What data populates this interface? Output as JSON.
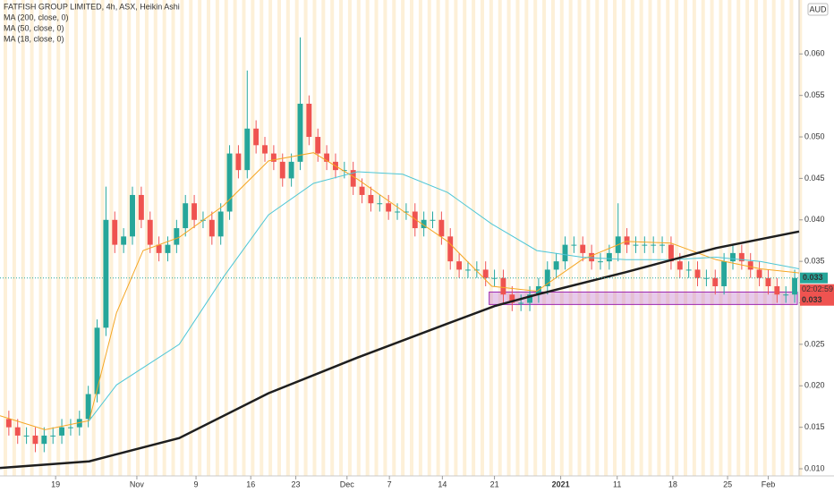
{
  "chart_data": {
    "type": "candlestick",
    "title": "FATFISH GROUP LIMITED, 4h, ASX, Heikin Ashi",
    "currency": "AUD",
    "x": [
      0,
      1,
      2,
      3,
      4,
      5,
      6,
      7,
      8,
      9,
      10,
      11,
      12,
      13,
      14,
      15,
      16,
      17,
      18,
      19,
      20,
      21,
      22,
      23,
      24,
      25,
      26,
      27,
      28,
      29,
      30,
      31,
      32,
      33,
      34,
      35,
      36,
      37,
      38,
      39,
      40,
      41,
      42,
      43,
      44,
      45,
      46,
      47,
      48,
      49,
      50,
      51,
      52,
      53,
      54,
      55,
      56,
      57,
      58,
      59,
      60,
      61,
      62,
      63,
      64,
      65,
      66,
      67,
      68,
      69,
      70,
      71,
      72,
      73,
      74,
      75,
      76,
      77,
      78,
      79,
      80,
      81,
      82,
      83,
      84,
      85,
      86,
      87,
      88,
      89
    ],
    "open": [
      0.016,
      0.015,
      0.014,
      0.014,
      0.013,
      0.014,
      0.014,
      0.015,
      0.015,
      0.016,
      0.019,
      0.027,
      0.04,
      0.037,
      0.038,
      0.043,
      0.04,
      0.037,
      0.036,
      0.037,
      0.039,
      0.042,
      0.04,
      0.04,
      0.038,
      0.041,
      0.048,
      0.046,
      0.051,
      0.049,
      0.048,
      0.047,
      0.045,
      0.047,
      0.054,
      0.05,
      0.048,
      0.047,
      0.046,
      0.046,
      0.044,
      0.043,
      0.042,
      0.042,
      0.041,
      0.041,
      0.041,
      0.039,
      0.04,
      0.04,
      0.038,
      0.035,
      0.034,
      0.034,
      0.034,
      0.033,
      0.033,
      0.031,
      0.03,
      0.03,
      0.031,
      0.032,
      0.034,
      0.035,
      0.037,
      0.037,
      0.036,
      0.035,
      0.035,
      0.036,
      0.038,
      0.037,
      0.037,
      0.037,
      0.037,
      0.037,
      0.035,
      0.034,
      0.034,
      0.033,
      0.033,
      0.032,
      0.035,
      0.036,
      0.035,
      0.034,
      0.033,
      0.032,
      0.031,
      0.031
    ],
    "high": [
      0.017,
      0.016,
      0.015,
      0.015,
      0.015,
      0.015,
      0.016,
      0.016,
      0.017,
      0.02,
      0.028,
      0.044,
      0.041,
      0.039,
      0.044,
      0.044,
      0.041,
      0.038,
      0.038,
      0.04,
      0.043,
      0.043,
      0.041,
      0.041,
      0.042,
      0.049,
      0.049,
      0.058,
      0.052,
      0.05,
      0.049,
      0.048,
      0.048,
      0.062,
      0.055,
      0.051,
      0.049,
      0.048,
      0.047,
      0.047,
      0.045,
      0.044,
      0.043,
      0.043,
      0.042,
      0.042,
      0.042,
      0.041,
      0.041,
      0.041,
      0.039,
      0.036,
      0.035,
      0.035,
      0.035,
      0.034,
      0.034,
      0.032,
      0.031,
      0.032,
      0.033,
      0.035,
      0.036,
      0.038,
      0.038,
      0.038,
      0.037,
      0.036,
      0.037,
      0.042,
      0.039,
      0.038,
      0.038,
      0.038,
      0.038,
      0.038,
      0.036,
      0.035,
      0.035,
      0.034,
      0.034,
      0.036,
      0.037,
      0.037,
      0.036,
      0.035,
      0.034,
      0.033,
      0.032,
      0.034
    ],
    "low": [
      0.014,
      0.013,
      0.013,
      0.012,
      0.012,
      0.013,
      0.013,
      0.014,
      0.014,
      0.015,
      0.018,
      0.026,
      0.036,
      0.036,
      0.037,
      0.039,
      0.036,
      0.035,
      0.035,
      0.036,
      0.038,
      0.039,
      0.039,
      0.037,
      0.037,
      0.04,
      0.045,
      0.045,
      0.048,
      0.047,
      0.046,
      0.044,
      0.044,
      0.046,
      0.049,
      0.047,
      0.046,
      0.045,
      0.045,
      0.043,
      0.042,
      0.041,
      0.041,
      0.04,
      0.04,
      0.04,
      0.038,
      0.038,
      0.039,
      0.037,
      0.034,
      0.033,
      0.033,
      0.033,
      0.032,
      0.032,
      0.03,
      0.029,
      0.029,
      0.029,
      0.03,
      0.031,
      0.033,
      0.034,
      0.036,
      0.035,
      0.034,
      0.034,
      0.034,
      0.035,
      0.036,
      0.036,
      0.036,
      0.036,
      0.036,
      0.034,
      0.033,
      0.033,
      0.032,
      0.032,
      0.031,
      0.031,
      0.034,
      0.034,
      0.033,
      0.032,
      0.031,
      0.03,
      0.03,
      0.03
    ],
    "close": [
      0.015,
      0.014,
      0.014,
      0.013,
      0.014,
      0.014,
      0.015,
      0.015,
      0.016,
      0.019,
      0.027,
      0.04,
      0.037,
      0.038,
      0.043,
      0.04,
      0.037,
      0.036,
      0.037,
      0.039,
      0.042,
      0.04,
      0.04,
      0.038,
      0.041,
      0.048,
      0.046,
      0.051,
      0.049,
      0.048,
      0.047,
      0.045,
      0.047,
      0.054,
      0.05,
      0.048,
      0.047,
      0.046,
      0.046,
      0.044,
      0.043,
      0.042,
      0.042,
      0.041,
      0.041,
      0.041,
      0.039,
      0.04,
      0.04,
      0.038,
      0.035,
      0.034,
      0.034,
      0.034,
      0.033,
      0.033,
      0.031,
      0.03,
      0.03,
      0.031,
      0.032,
      0.034,
      0.035,
      0.037,
      0.037,
      0.036,
      0.035,
      0.035,
      0.036,
      0.038,
      0.037,
      0.037,
      0.037,
      0.037,
      0.037,
      0.035,
      0.034,
      0.034,
      0.033,
      0.033,
      0.032,
      0.035,
      0.036,
      0.035,
      0.034,
      0.033,
      0.032,
      0.031,
      0.031,
      0.033
    ],
    "up_color": "#26a69a",
    "down_color": "#ef5350",
    "series": [
      {
        "name": "MA (200, close, 0)",
        "color": "#1e1e1e",
        "x": [
          -1,
          9.1,
          19.3,
          29.4,
          39.5,
          49.7,
          55.0,
          59.8,
          69.9,
          80.1,
          89.5
        ],
        "values": [
          0.0101,
          0.0109,
          0.0137,
          0.0191,
          0.0234,
          0.0275,
          0.0296,
          0.031,
          0.0337,
          0.0366,
          0.0386
        ]
      },
      {
        "name": "MA (50, close, 0)",
        "color": "#4dc6d6",
        "x": [
          9.1,
          12.2,
          19.3,
          24.3,
          29.4,
          34.5,
          39.5,
          44.6,
          49.7,
          54.7,
          59.8,
          64.9,
          69.9,
          75.0,
          80.1,
          85.1,
          89.5
        ],
        "values": [
          0.0158,
          0.0201,
          0.025,
          0.0331,
          0.0406,
          0.0444,
          0.0458,
          0.0455,
          0.0433,
          0.0395,
          0.0363,
          0.0355,
          0.0352,
          0.0352,
          0.0355,
          0.035,
          0.0341
        ]
      },
      {
        "name": "MA (18, close, 0)",
        "color": "#f5a623",
        "x": [
          -1,
          4.1,
          9.1,
          12.2,
          15.2,
          19.3,
          24.3,
          29.4,
          34.5,
          39.5,
          44.6,
          49.7,
          54.7,
          59.8,
          64.9,
          69.9,
          75.0,
          80.1,
          85.1,
          89.5
        ],
        "values": [
          0.0164,
          0.0147,
          0.0158,
          0.0288,
          0.0363,
          0.0379,
          0.0417,
          0.0471,
          0.0481,
          0.0449,
          0.0411,
          0.0374,
          0.032,
          0.0314,
          0.0352,
          0.0374,
          0.0372,
          0.0352,
          0.0341,
          0.0336
        ]
      }
    ],
    "zone": {
      "x": [
        54.4,
        89.3
      ],
      "y": [
        0.0298,
        0.0313
      ]
    },
    "xlim": [
      -1,
      89.5
    ],
    "ylim": [
      0.00914,
      0.0665
    ],
    "xticks": [
      {
        "value": 5.3,
        "label": "19"
      },
      {
        "value": 14.5,
        "label": "Nov"
      },
      {
        "value": 21.2,
        "label": "9"
      },
      {
        "value": 27.4,
        "label": "16"
      },
      {
        "value": 32.5,
        "label": "23"
      },
      {
        "value": 38.3,
        "label": "Dec"
      },
      {
        "value": 43.1,
        "label": "7"
      },
      {
        "value": 49.1,
        "label": "14"
      },
      {
        "value": 55.0,
        "label": "21"
      },
      {
        "value": 62.5,
        "label": "2021"
      },
      {
        "value": 68.9,
        "label": "11"
      },
      {
        "value": 75.2,
        "label": "18"
      },
      {
        "value": 81.4,
        "label": "25"
      },
      {
        "value": 86.0,
        "label": "Feb"
      }
    ],
    "yticks": [
      {
        "value": 0.01,
        "label": "0.010"
      },
      0.015,
      {
        "value": 0.02,
        "label": "0.020"
      },
      0.025,
      {
        "value": 0.03,
        "label": "0.030"
      },
      0.035,
      {
        "value": 0.04,
        "label": "0.040"
      },
      0.045,
      {
        "value": 0.05,
        "label": "0.050"
      },
      0.055,
      {
        "value": 0.06,
        "label": "0.060"
      }
    ],
    "last_price": 0.033,
    "countdown": "02:02:59",
    "prev_price": 0.033
  }
}
